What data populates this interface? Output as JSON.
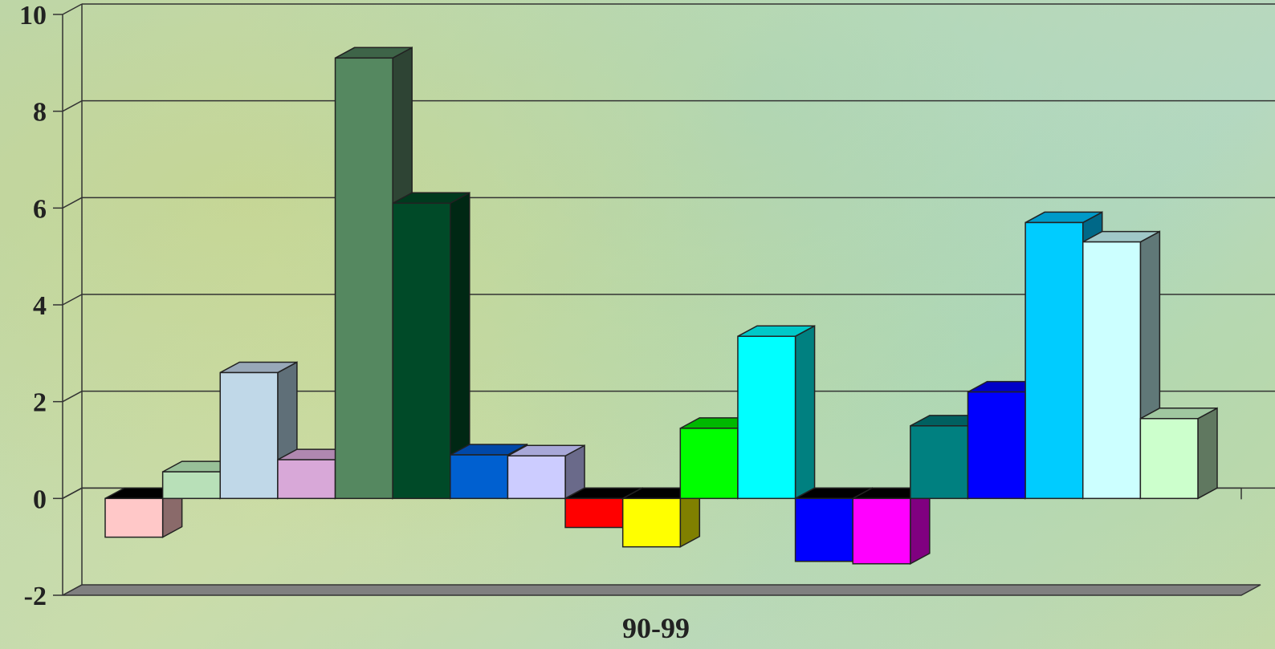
{
  "chart_data": {
    "type": "bar",
    "categories": [
      "90-99"
    ],
    "series": [
      {
        "values": [
          -0.8
        ],
        "color": "#ffc8c8",
        "side": "#8a6a6a",
        "top": "#000000"
      },
      {
        "values": [
          0.55
        ],
        "color": "#b8e0b8",
        "side": "#6a8a6a",
        "top": "#98c098"
      },
      {
        "values": [
          2.6
        ],
        "color": "#c0d8e8",
        "side": "#5f6f78",
        "top": "#98a8b8"
      },
      {
        "values": [
          0.8
        ],
        "color": "#d8a8d8",
        "side": "#806080",
        "top": "#b088b0"
      },
      {
        "values": [
          9.1
        ],
        "color": "#558860",
        "side": "#2e4434",
        "top": "#3e6448"
      },
      {
        "values": [
          6.1
        ],
        "color": "#004a28",
        "side": "#002814",
        "top": "#003a1e"
      },
      {
        "values": [
          0.9
        ],
        "color": "#0060d0",
        "side": "#003070",
        "top": "#0048a8"
      },
      {
        "values": [
          0.88
        ],
        "color": "#ccccff",
        "side": "#6a6a8a",
        "top": "#a8a8d8"
      },
      {
        "values": [
          -0.6
        ],
        "color": "#ff0000",
        "side": "#800000",
        "top": "#000000"
      },
      {
        "values": [
          -1.0
        ],
        "color": "#ffff00",
        "side": "#808000",
        "top": "#000000"
      },
      {
        "values": [
          1.45
        ],
        "color": "#00ff00",
        "side": "#008000",
        "top": "#00b800"
      },
      {
        "values": [
          3.35
        ],
        "color": "#00ffff",
        "side": "#008080",
        "top": "#00c8c8"
      },
      {
        "values": [
          -1.3
        ],
        "color": "#0000ff",
        "side": "#000080",
        "top": "#000000"
      },
      {
        "values": [
          -1.35
        ],
        "color": "#ff00ff",
        "side": "#800080",
        "top": "#000000"
      },
      {
        "values": [
          1.5
        ],
        "color": "#008080",
        "side": "#004848",
        "top": "#006060"
      },
      {
        "values": [
          2.2
        ],
        "color": "#0000ff",
        "side": "#000080",
        "top": "#0000c8"
      },
      {
        "values": [
          5.7
        ],
        "color": "#00ccff",
        "side": "#006888",
        "top": "#009ac8"
      },
      {
        "values": [
          5.3
        ],
        "color": "#ccffff",
        "side": "#607878",
        "top": "#a0c8c8"
      },
      {
        "values": [
          1.65
        ],
        "color": "#ccffcc",
        "side": "#607860",
        "top": "#a0c8a0"
      }
    ],
    "ylim": [
      -2,
      10
    ],
    "yticks": [
      "-2",
      "0",
      "2",
      "4",
      "6",
      "8",
      "10"
    ],
    "grid": true,
    "legend": "none",
    "floor_color": "#808080"
  }
}
